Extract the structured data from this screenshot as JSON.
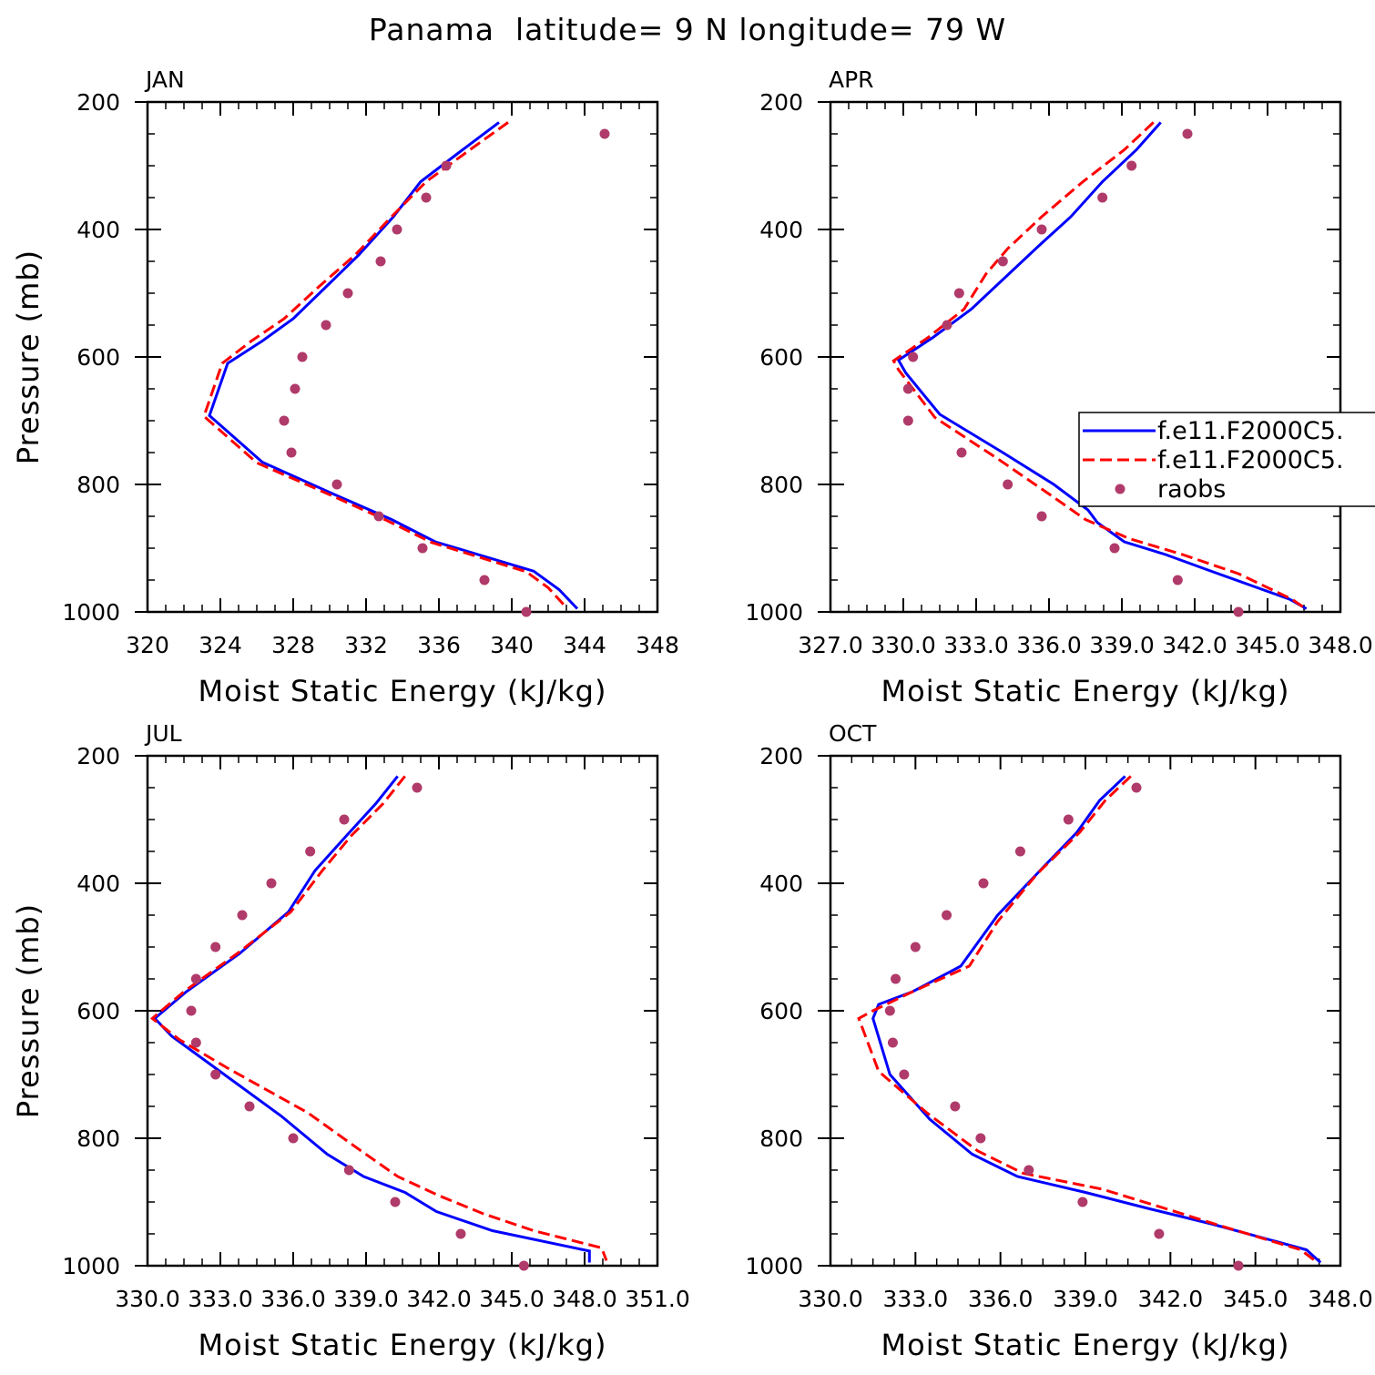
{
  "title": "Panama  latitude= 9 N longitude= 79 W",
  "colors": {
    "model1": "#0000ff",
    "model2": "#ff0000",
    "raobs": "#b03a6a"
  },
  "legend": {
    "panel": 1,
    "entries": [
      {
        "label": "f.e11.F2000C5.",
        "style": "solid",
        "color": "#0000ff"
      },
      {
        "label": "f.e11.F2000C5.",
        "style": "dashed",
        "color": "#ff0000"
      },
      {
        "label": "raobs",
        "style": "dot",
        "color": "#b03a6a"
      }
    ]
  },
  "chart_data": [
    {
      "type": "line",
      "title": "JAN",
      "xlabel": "Moist Static Energy (kJ/kg)",
      "ylabel": "Pressure (mb)",
      "xlim": [
        320,
        348
      ],
      "ylim": [
        200,
        1000
      ],
      "y_inverted": false,
      "xticks": [
        320,
        324,
        328,
        332,
        336,
        340,
        344,
        348
      ],
      "xtick_labels": [
        "320",
        "324",
        "328",
        "332",
        "336",
        "340",
        "344",
        "348"
      ],
      "yticks": [
        200,
        400,
        600,
        800,
        1000
      ],
      "ytick_labels": [
        "200",
        "400",
        "600",
        "800",
        "1000"
      ],
      "series": [
        {
          "style": "solid",
          "points": [
            [
              339.3,
              232
            ],
            [
              337.3,
              275
            ],
            [
              335.0,
              325
            ],
            [
              333.5,
              380
            ],
            [
              331.6,
              440
            ],
            [
              329.8,
              490
            ],
            [
              328.0,
              540
            ],
            [
              326.3,
              575
            ],
            [
              324.4,
              610
            ],
            [
              323.4,
              692
            ],
            [
              326.3,
              765
            ],
            [
              330.2,
              815
            ],
            [
              333.4,
              855
            ],
            [
              335.8,
              890
            ],
            [
              341.2,
              936
            ],
            [
              342.6,
              965
            ],
            [
              343.6,
              995
            ]
          ]
        },
        {
          "style": "dashed",
          "points": [
            [
              339.8,
              232
            ],
            [
              337.7,
              275
            ],
            [
              335.3,
              325
            ],
            [
              333.4,
              380
            ],
            [
              331.4,
              440
            ],
            [
              329.4,
              490
            ],
            [
              327.5,
              540
            ],
            [
              325.7,
              575
            ],
            [
              324.1,
              610
            ],
            [
              323.1,
              693
            ],
            [
              326.0,
              766
            ],
            [
              330.0,
              816
            ],
            [
              333.1,
              856
            ],
            [
              335.6,
              891
            ],
            [
              340.8,
              937
            ],
            [
              342.0,
              962
            ],
            [
              342.9,
              990
            ]
          ]
        },
        {
          "style": "dot",
          "points": [
            [
              345.1,
              250
            ],
            [
              336.4,
              300
            ],
            [
              335.3,
              350
            ],
            [
              333.7,
              400
            ],
            [
              332.8,
              450
            ],
            [
              331.0,
              500
            ],
            [
              329.8,
              550
            ],
            [
              328.5,
              600
            ],
            [
              328.1,
              650
            ],
            [
              327.5,
              700
            ],
            [
              327.9,
              750
            ],
            [
              330.4,
              800
            ],
            [
              332.7,
              850
            ],
            [
              335.1,
              900
            ],
            [
              338.5,
              950
            ],
            [
              340.8,
              1000
            ]
          ]
        }
      ]
    },
    {
      "type": "line",
      "title": "APR",
      "xlabel": "Moist Static Energy (kJ/kg)",
      "ylabel": "Pressure (mb)",
      "xlim": [
        327,
        348
      ],
      "ylim": [
        200,
        1000
      ],
      "y_inverted": false,
      "xticks": [
        327,
        330,
        333,
        336,
        339,
        342,
        345,
        348
      ],
      "xtick_labels": [
        "327.0",
        "330.0",
        "333.0",
        "336.0",
        "339.0",
        "342.0",
        "345.0",
        "348.0"
      ],
      "yticks": [
        200,
        400,
        600,
        800,
        1000
      ],
      "ytick_labels": [
        "200",
        "400",
        "600",
        "800",
        "1000"
      ],
      "series": [
        {
          "style": "solid",
          "points": [
            [
              340.6,
              232
            ],
            [
              339.6,
              275
            ],
            [
              338.2,
              325
            ],
            [
              336.9,
              380
            ],
            [
              335.6,
              425
            ],
            [
              334.2,
              475
            ],
            [
              332.8,
              525
            ],
            [
              331.2,
              570
            ],
            [
              329.8,
              605
            ],
            [
              330.1,
              625
            ],
            [
              331.5,
              690
            ],
            [
              334.1,
              750
            ],
            [
              336.2,
              800
            ],
            [
              337.6,
              840
            ],
            [
              338.0,
              860
            ],
            [
              339.1,
              890
            ],
            [
              340.8,
              910
            ],
            [
              342.6,
              935
            ],
            [
              345.9,
              980
            ],
            [
              346.6,
              995
            ]
          ]
        },
        {
          "style": "dashed",
          "points": [
            [
              340.3,
              232
            ],
            [
              339.1,
              275
            ],
            [
              337.4,
              325
            ],
            [
              335.7,
              380
            ],
            [
              334.3,
              430
            ],
            [
              333.4,
              470
            ],
            [
              332.5,
              525
            ],
            [
              331.0,
              570
            ],
            [
              329.6,
              606
            ],
            [
              329.8,
              620
            ],
            [
              331.3,
              695
            ],
            [
              333.9,
              760
            ],
            [
              336.0,
              815
            ],
            [
              337.5,
              855
            ],
            [
              339.3,
              885
            ],
            [
              341.5,
              910
            ],
            [
              343.8,
              940
            ],
            [
              346.0,
              980
            ],
            [
              346.5,
              993
            ]
          ]
        },
        {
          "style": "dot",
          "points": [
            [
              341.7,
              250
            ],
            [
              339.4,
              300
            ],
            [
              338.2,
              350
            ],
            [
              335.7,
              400
            ],
            [
              334.1,
              450
            ],
            [
              332.3,
              500
            ],
            [
              331.8,
              550
            ],
            [
              330.4,
              600
            ],
            [
              330.2,
              650
            ],
            [
              330.2,
              700
            ],
            [
              332.4,
              750
            ],
            [
              334.3,
              800
            ],
            [
              335.7,
              850
            ],
            [
              338.7,
              900
            ],
            [
              341.3,
              950
            ],
            [
              343.8,
              1000
            ]
          ]
        }
      ]
    },
    {
      "type": "line",
      "title": "JUL",
      "xlabel": "Moist Static Energy (kJ/kg)",
      "ylabel": "Pressure (mb)",
      "xlim": [
        330,
        351
      ],
      "ylim": [
        200,
        1000
      ],
      "y_inverted": false,
      "xticks": [
        330,
        333,
        336,
        339,
        342,
        345,
        348,
        351
      ],
      "xtick_labels": [
        "330.0",
        "333.0",
        "336.0",
        "339.0",
        "342.0",
        "345.0",
        "348.0",
        "351.0"
      ],
      "yticks": [
        200,
        400,
        600,
        800,
        1000
      ],
      "ytick_labels": [
        "200",
        "400",
        "600",
        "800",
        "1000"
      ],
      "series": [
        {
          "style": "solid",
          "points": [
            [
              340.3,
              232
            ],
            [
              339.4,
              275
            ],
            [
              338.2,
              325
            ],
            [
              336.9,
              380
            ],
            [
              335.8,
              445
            ],
            [
              333.8,
              510
            ],
            [
              331.6,
              570
            ],
            [
              330.3,
              612
            ],
            [
              331.0,
              640
            ],
            [
              332.8,
              690
            ],
            [
              335.5,
              765
            ],
            [
              337.4,
              825
            ],
            [
              338.9,
              860
            ],
            [
              340.6,
              885
            ],
            [
              341.9,
              915
            ],
            [
              344.2,
              945
            ],
            [
              348.2,
              977
            ],
            [
              348.2,
              995
            ]
          ]
        },
        {
          "style": "dashed",
          "points": [
            [
              340.6,
              232
            ],
            [
              339.7,
              275
            ],
            [
              338.4,
              325
            ],
            [
              337.2,
              380
            ],
            [
              335.9,
              445
            ],
            [
              333.7,
              510
            ],
            [
              331.5,
              570
            ],
            [
              330.2,
              612
            ],
            [
              331.3,
              645
            ],
            [
              333.3,
              690
            ],
            [
              336.6,
              760
            ],
            [
              338.8,
              820
            ],
            [
              340.3,
              860
            ],
            [
              342.0,
              890
            ],
            [
              343.8,
              918
            ],
            [
              345.9,
              945
            ],
            [
              348.7,
              972
            ],
            [
              348.9,
              992
            ]
          ]
        },
        {
          "style": "dot",
          "points": [
            [
              341.1,
              250
            ],
            [
              338.1,
              300
            ],
            [
              336.7,
              350
            ],
            [
              335.1,
              400
            ],
            [
              333.9,
              450
            ],
            [
              332.8,
              500
            ],
            [
              332.0,
              550
            ],
            [
              331.8,
              600
            ],
            [
              332.0,
              650
            ],
            [
              332.8,
              700
            ],
            [
              334.2,
              750
            ],
            [
              336.0,
              800
            ],
            [
              338.3,
              850
            ],
            [
              340.2,
              900
            ],
            [
              342.9,
              950
            ],
            [
              345.5,
              1000
            ]
          ]
        }
      ]
    },
    {
      "type": "line",
      "title": "OCT",
      "xlabel": "Moist Static Energy (kJ/kg)",
      "ylabel": "Pressure (mb)",
      "xlim": [
        330,
        348
      ],
      "ylim": [
        200,
        1000
      ],
      "y_inverted": false,
      "xticks": [
        330,
        333,
        336,
        339,
        342,
        345,
        348
      ],
      "xtick_labels": [
        "330.0",
        "333.0",
        "336.0",
        "339.0",
        "342.0",
        "345.0",
        "348.0"
      ],
      "yticks": [
        200,
        400,
        600,
        800,
        1000
      ],
      "ytick_labels": [
        "200",
        "400",
        "600",
        "800",
        "1000"
      ],
      "series": [
        {
          "style": "solid",
          "points": [
            [
              340.4,
              232
            ],
            [
              339.5,
              270
            ],
            [
              338.7,
              320
            ],
            [
              337.4,
              380
            ],
            [
              335.9,
              450
            ],
            [
              334.6,
              530
            ],
            [
              332.9,
              570
            ],
            [
              331.7,
              590
            ],
            [
              331.5,
              612
            ],
            [
              332.1,
              700
            ],
            [
              333.5,
              770
            ],
            [
              335.0,
              825
            ],
            [
              336.6,
              860
            ],
            [
              339.0,
              885
            ],
            [
              341.2,
              910
            ],
            [
              343.5,
              935
            ],
            [
              346.8,
              975
            ],
            [
              347.3,
              995
            ]
          ]
        },
        {
          "style": "dashed",
          "points": [
            [
              340.6,
              232
            ],
            [
              339.7,
              270
            ],
            [
              338.8,
              320
            ],
            [
              337.3,
              385
            ],
            [
              335.9,
              460
            ],
            [
              334.9,
              530
            ],
            [
              332.9,
              570
            ],
            [
              331.5,
              600
            ],
            [
              331.0,
              612
            ],
            [
              331.7,
              695
            ],
            [
              333.4,
              760
            ],
            [
              335.2,
              820
            ],
            [
              336.8,
              855
            ],
            [
              339.6,
              880
            ],
            [
              341.8,
              910
            ],
            [
              343.6,
              935
            ],
            [
              346.6,
              975
            ],
            [
              347.1,
              992
            ]
          ]
        },
        {
          "style": "dot",
          "points": [
            [
              340.8,
              250
            ],
            [
              338.4,
              300
            ],
            [
              336.7,
              350
            ],
            [
              335.4,
              400
            ],
            [
              334.1,
              450
            ],
            [
              333.0,
              500
            ],
            [
              332.3,
              550
            ],
            [
              332.1,
              600
            ],
            [
              332.2,
              650
            ],
            [
              332.6,
              700
            ],
            [
              334.4,
              750
            ],
            [
              335.3,
              800
            ],
            [
              337.0,
              850
            ],
            [
              338.9,
              900
            ],
            [
              341.6,
              950
            ],
            [
              344.4,
              1000
            ]
          ]
        }
      ]
    }
  ]
}
